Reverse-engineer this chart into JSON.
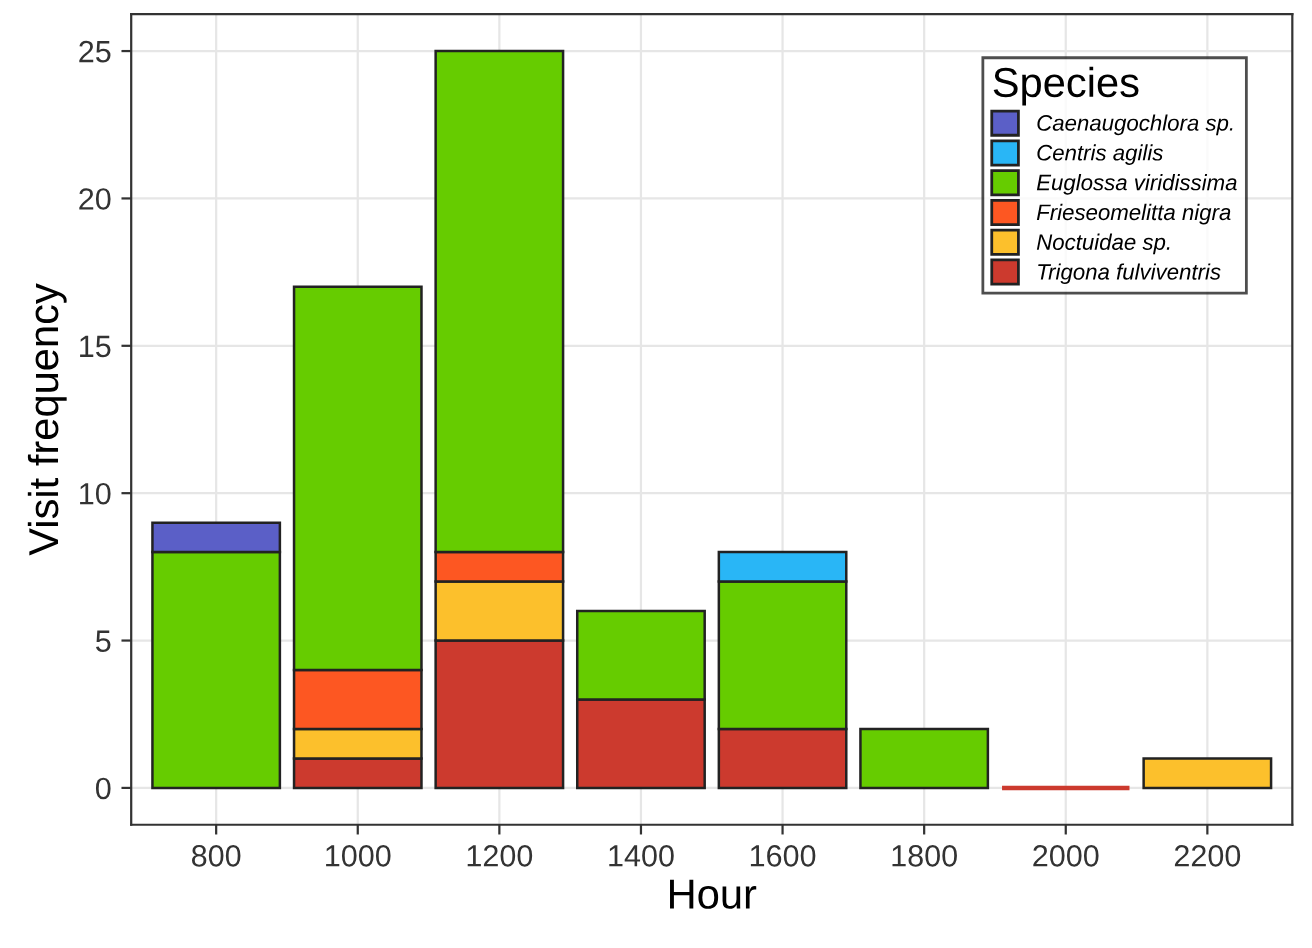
{
  "chart_data": {
    "type": "bar",
    "stacked": true,
    "xlabel": "Hour",
    "ylabel": "Visit frequency",
    "legend_title": "Species",
    "legend": "top right",
    "grid": true,
    "categories": [
      "800",
      "1000",
      "1200",
      "1400",
      "1600",
      "1800",
      "2000",
      "2200"
    ],
    "ylim": [
      -1.25,
      26.25
    ],
    "yticks": [
      0,
      5,
      10,
      15,
      20,
      25
    ],
    "series": [
      {
        "name": "Trigona fulviventris",
        "color": "#cc3a2e",
        "values": [
          null,
          1,
          5,
          3,
          2,
          null,
          0,
          null
        ]
      },
      {
        "name": "Noctuidae sp.",
        "color": "#fcc02c",
        "values": [
          null,
          1,
          2,
          null,
          null,
          null,
          null,
          1
        ]
      },
      {
        "name": "Frieseomelitta nigra",
        "color": "#fd5722",
        "values": [
          null,
          2,
          1,
          null,
          null,
          null,
          null,
          null
        ]
      },
      {
        "name": "Euglossa viridissima",
        "color": "#66cc00",
        "values": [
          8,
          13,
          17,
          3,
          5,
          2,
          null,
          null
        ]
      },
      {
        "name": "Centris agilis",
        "color": "#29b6f6",
        "values": [
          null,
          null,
          null,
          null,
          1,
          null,
          null,
          null
        ]
      },
      {
        "name": "Caenaugochlora sp.",
        "color": "#5b5fc7",
        "values": [
          1,
          null,
          null,
          null,
          null,
          null,
          null,
          null
        ]
      }
    ]
  }
}
